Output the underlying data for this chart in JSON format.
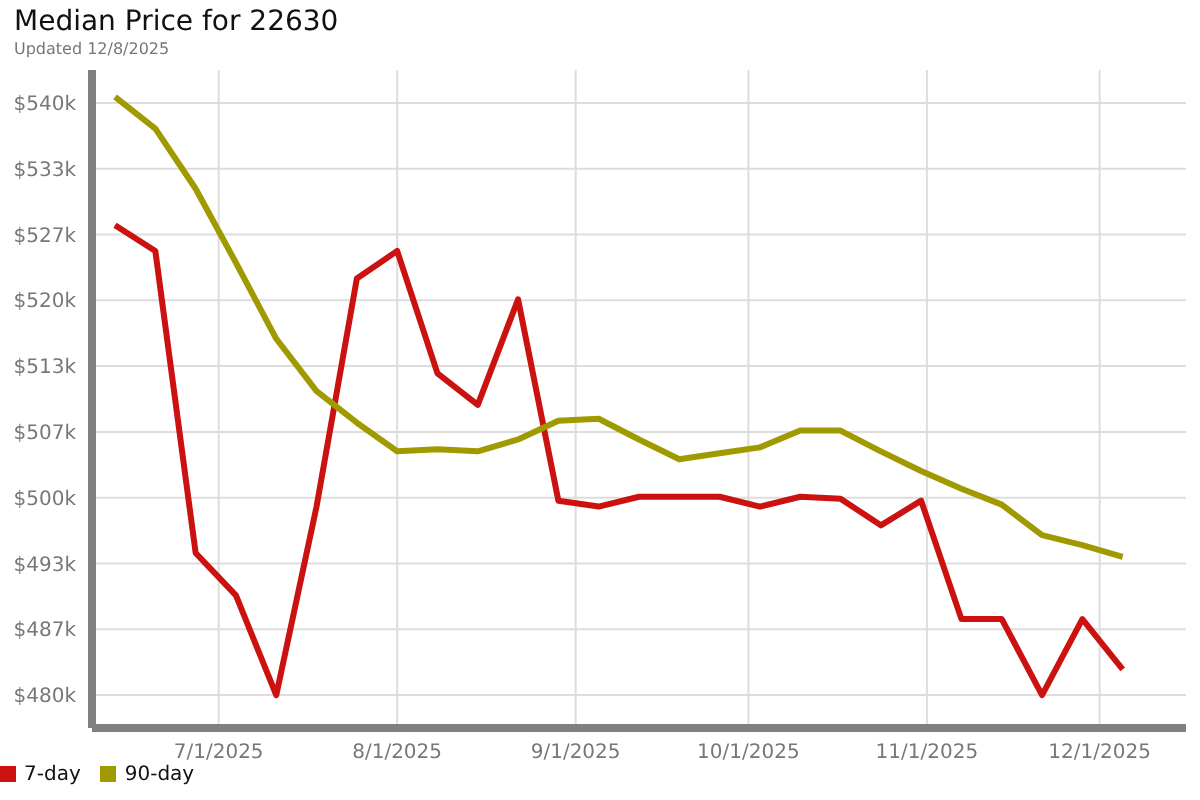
{
  "chart_data": {
    "type": "line",
    "title": "Median Price for 22630",
    "subtitle": "Updated 12/8/2025",
    "x": [
      "2025-06-13",
      "2025-06-20",
      "2025-06-27",
      "2025-07-04",
      "2025-07-11",
      "2025-07-18",
      "2025-07-25",
      "2025-08-01",
      "2025-08-08",
      "2025-08-15",
      "2025-08-22",
      "2025-08-29",
      "2025-09-05",
      "2025-09-12",
      "2025-09-19",
      "2025-09-26",
      "2025-10-03",
      "2025-10-10",
      "2025-10-17",
      "2025-10-24",
      "2025-10-31",
      "2025-11-07",
      "2025-11-14",
      "2025-11-21",
      "2025-11-28",
      "2025-12-05"
    ],
    "series": [
      {
        "name": "7-day",
        "color": "#cc1111",
        "values": [
          527600,
          525000,
          494400,
          490100,
          480000,
          499100,
          522200,
          525000,
          512600,
          509400,
          520100,
          499700,
          499100,
          500100,
          500100,
          500100,
          499100,
          500100,
          499900,
          497200,
          499700,
          487700,
          487700,
          480000,
          487700,
          482600
        ]
      },
      {
        "name": "90-day",
        "color": "#a09a00",
        "values": [
          540600,
          537400,
          531300,
          523800,
          516100,
          510800,
          507600,
          504700,
          504900,
          504700,
          505900,
          507800,
          508000,
          505900,
          503900,
          504500,
          505100,
          506800,
          506800,
          504700,
          502700,
          500900,
          499300,
          496200,
          495200,
          494000
        ]
      }
    ],
    "xlim": [
      "2025-06-09",
      "2025-12-16"
    ],
    "xticks": [
      {
        "value": "2025-07-01",
        "label": "7/1/2025"
      },
      {
        "value": "2025-08-01",
        "label": "8/1/2025"
      },
      {
        "value": "2025-09-01",
        "label": "9/1/2025"
      },
      {
        "value": "2025-10-01",
        "label": "10/1/2025"
      },
      {
        "value": "2025-11-01",
        "label": "11/1/2025"
      },
      {
        "value": "2025-12-01",
        "label": "12/1/2025"
      }
    ],
    "ylim": [
      476667,
      543333
    ],
    "yticks": [
      {
        "value": 480000,
        "label": "$480k"
      },
      {
        "value": 486667,
        "label": "$487k"
      },
      {
        "value": 493333,
        "label": "$493k"
      },
      {
        "value": 500000,
        "label": "$500k"
      },
      {
        "value": 506667,
        "label": "$507k"
      },
      {
        "value": 513333,
        "label": "$513k"
      },
      {
        "value": 520000,
        "label": "$520k"
      },
      {
        "value": 526667,
        "label": "$527k"
      },
      {
        "value": 533333,
        "label": "$533k"
      },
      {
        "value": 540000,
        "label": "$540k"
      }
    ],
    "grid": true,
    "legend": "bottom left",
    "marker": "none",
    "line_style": "solid"
  }
}
